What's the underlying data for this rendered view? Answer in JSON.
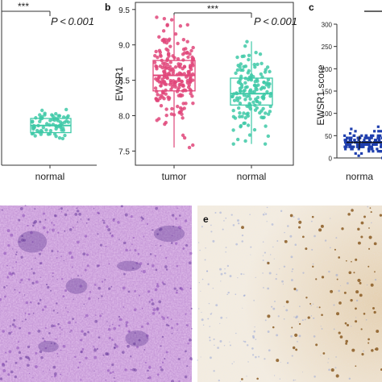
{
  "panels": {
    "a": {
      "letter": "",
      "sig": "***",
      "p_text": "P < 0.001",
      "x_label": "normal"
    },
    "b": {
      "letter": "b",
      "sig": "***",
      "p_text": "P < 0.001",
      "y_label": "EWSR1"
    },
    "c": {
      "letter": "c",
      "y_label": "EWSR1 score",
      "x_label": "norma"
    },
    "d": {
      "letter": ""
    },
    "e": {
      "letter": "e"
    }
  },
  "colors": {
    "tumor": "#e0477a",
    "normal": "#3ec9a7",
    "dots_c": "#1f3fae",
    "he_stain": "#b07cc8",
    "ihc_bg": "#f3ece0",
    "ihc_brown": "#8a5a22",
    "ihc_blue": "#8a9bd4"
  },
  "chart_data": [
    {
      "type": "scatter",
      "subtype": "box-jitter",
      "panel": "a",
      "categories": [
        "normal"
      ],
      "box": {
        "normal": {
          "q1": 7.92,
          "median": 8.02,
          "q3": 8.12
        }
      },
      "title": "",
      "xlabel": "",
      "ylabel": ""
    },
    {
      "type": "scatter",
      "subtype": "box-jitter",
      "panel": "b",
      "categories": [
        "tumor",
        "normal"
      ],
      "ylim": [
        7.3,
        9.6
      ],
      "yticks": [
        7.5,
        8.0,
        8.5,
        9.0,
        9.5
      ],
      "box": {
        "tumor": {
          "whisker_low": 7.55,
          "q1": 8.35,
          "median": 8.57,
          "q3": 8.78,
          "whisker_high": 9.42
        },
        "normal": {
          "whisker_low": 7.6,
          "q1": 8.15,
          "median": 8.31,
          "q3": 8.53,
          "whisker_high": 9.05
        }
      },
      "title": "",
      "xlabel": "",
      "ylabel": "EWSR1"
    },
    {
      "type": "scatter",
      "subtype": "dot-plot",
      "panel": "c",
      "categories": [
        "norma"
      ],
      "ylim": [
        0,
        300
      ],
      "yticks": [
        0,
        50,
        100,
        150,
        200,
        250,
        300
      ],
      "summary": {
        "mean": 35,
        "sd_low": 20,
        "sd_high": 50
      },
      "title": "",
      "xlabel": "",
      "ylabel": "EWSR1 score"
    }
  ]
}
